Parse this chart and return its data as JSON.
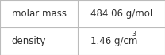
{
  "rows": [
    {
      "label": "molar mass",
      "value": "484.06 g/mol",
      "superscript": ""
    },
    {
      "label": "density",
      "value": "1.46 g/cm",
      "superscript": "3"
    }
  ],
  "col_split": 0.47,
  "background_color": "#ffffff",
  "border_color": "#bbbbbb",
  "font_size": 8.5,
  "text_color": "#303030",
  "figsize": [
    2.08,
    0.7
  ],
  "dpi": 100
}
